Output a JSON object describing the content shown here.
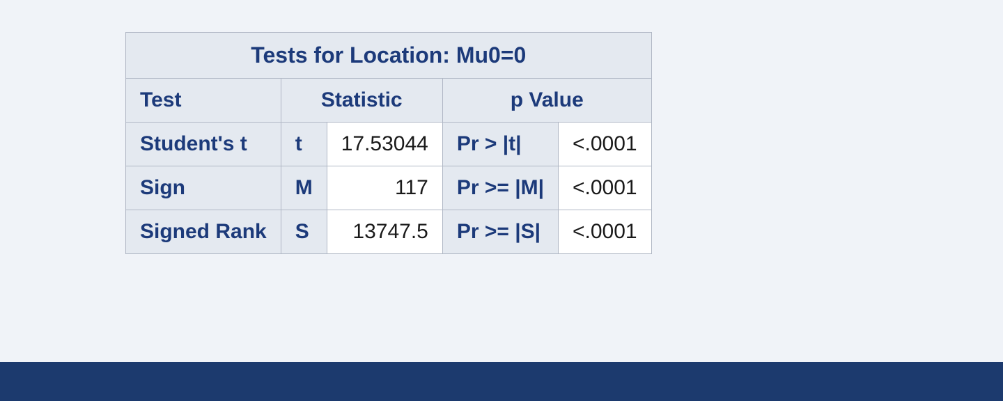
{
  "table": {
    "title": "Tests for Location: Mu0=0",
    "headers": {
      "test": "Test",
      "statistic": "Statistic",
      "pvalue": "p Value"
    },
    "rows": [
      {
        "name": "Student's t",
        "symbol": "t",
        "value": "17.53044",
        "p_label": "Pr > |t|",
        "p_value": "<.0001"
      },
      {
        "name": "Sign",
        "symbol": "M",
        "value": "117",
        "p_label": "Pr >= |M|",
        "p_value": "<.0001"
      },
      {
        "name": "Signed Rank",
        "symbol": "S",
        "value": "13747.5",
        "p_label": "Pr >= |S|",
        "p_value": "<.0001"
      }
    ],
    "styles": {
      "header_bg": "#e4e9f0",
      "header_text": "#1c3a7a",
      "cell_bg": "#ffffff",
      "border_color": "#b0b7c5",
      "page_bg": "#f0f3f8",
      "band_color": "#1c3a6e",
      "title_fontsize": 32,
      "cell_fontsize": 30
    }
  }
}
